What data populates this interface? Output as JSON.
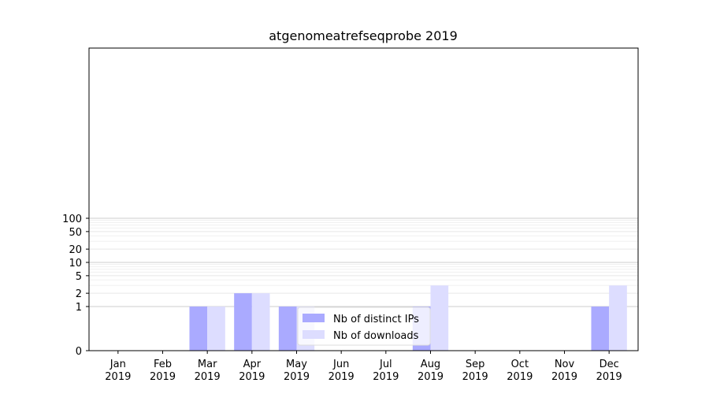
{
  "chart_data": {
    "type": "bar",
    "title": "atgenomeatrefseqprobe 2019",
    "xlabel": "",
    "ylabel": "",
    "y_scale": "symlog",
    "ylim": [
      0,
      110
    ],
    "y_ticks": [
      0,
      1,
      2,
      5,
      10,
      20,
      50,
      100
    ],
    "grid": "horizontal",
    "legend_position": "bottom-center",
    "categories": [
      "Jan\n2019",
      "Feb\n2019",
      "Mar\n2019",
      "Apr\n2019",
      "May\n2019",
      "Jun\n2019",
      "Jul\n2019",
      "Aug\n2019",
      "Sep\n2019",
      "Oct\n2019",
      "Nov\n2019",
      "Dec\n2019"
    ],
    "series": [
      {
        "name": "Nb of distinct IPs",
        "color": "#aaaaff",
        "values": [
          0,
          0,
          1,
          2,
          1,
          0,
          0,
          1,
          0,
          0,
          0,
          1
        ]
      },
      {
        "name": "Nb of downloads",
        "color": "#ddddff",
        "values": [
          0,
          0,
          1,
          2,
          1,
          0,
          0,
          3,
          0,
          0,
          0,
          3
        ]
      }
    ]
  }
}
